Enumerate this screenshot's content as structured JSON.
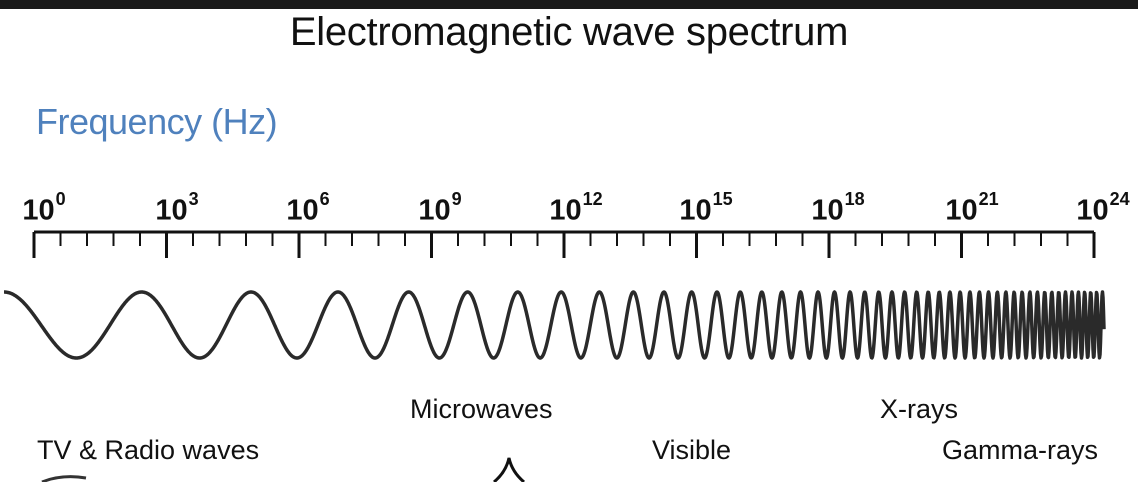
{
  "title": "Electromagnetic wave spectrum",
  "axis_label": "Frequency (Hz)",
  "ticks": [
    {
      "base": "10",
      "exp": "0"
    },
    {
      "base": "10",
      "exp": "3"
    },
    {
      "base": "10",
      "exp": "6"
    },
    {
      "base": "10",
      "exp": "9"
    },
    {
      "base": "10",
      "exp": "12"
    },
    {
      "base": "10",
      "exp": "15"
    },
    {
      "base": "10",
      "exp": "18"
    },
    {
      "base": "10",
      "exp": "21"
    },
    {
      "base": "10",
      "exp": "24"
    }
  ],
  "bands": {
    "microwaves": "Microwaves",
    "xrays": "X-rays",
    "tv_radio": "TV & Radio waves",
    "visible": "Visible",
    "gamma": "Gamma-rays"
  },
  "colors": {
    "title": "#111111",
    "axis_label": "#4f81bd",
    "wave": "#2a2a2a"
  }
}
